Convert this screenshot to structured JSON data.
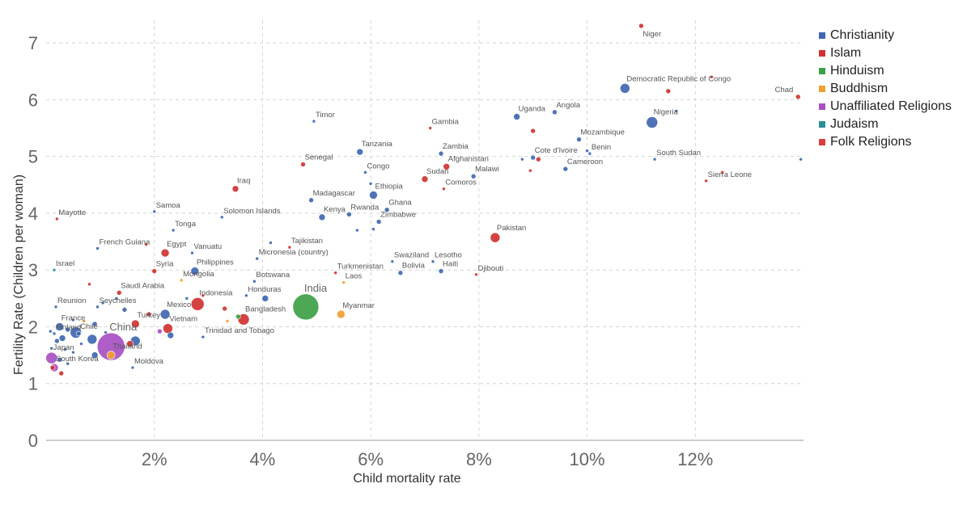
{
  "chart_data": {
    "type": "scatter",
    "title": "",
    "xlabel": "Child mortality rate",
    "ylabel": "Fertility Rate (Children per woman)",
    "xlim": [
      0,
      14
    ],
    "ylim": [
      0,
      7.4
    ],
    "x_ticks": [
      {
        "v": 2,
        "label": "2%"
      },
      {
        "v": 4,
        "label": "4%"
      },
      {
        "v": 6,
        "label": "6%"
      },
      {
        "v": 8,
        "label": "8%"
      },
      {
        "v": 10,
        "label": "10%"
      },
      {
        "v": 12,
        "label": "12%"
      }
    ],
    "y_ticks": [
      {
        "v": 0,
        "label": "0"
      },
      {
        "v": 1,
        "label": "1"
      },
      {
        "v": 2,
        "label": "2"
      },
      {
        "v": 3,
        "label": "3"
      },
      {
        "v": 4,
        "label": "4"
      },
      {
        "v": 5,
        "label": "5"
      },
      {
        "v": 6,
        "label": "6"
      },
      {
        "v": 7,
        "label": "7"
      }
    ],
    "grid": true,
    "legend_position": "top-right",
    "bubble_size": "population",
    "series": [
      {
        "name": "Christianity",
        "color": "#3f67b1"
      },
      {
        "name": "Islam",
        "color": "#d03232"
      },
      {
        "name": "Hinduism",
        "color": "#3ea046"
      },
      {
        "name": "Buddhism",
        "color": "#f0a030"
      },
      {
        "name": "Unaffiliated Religions",
        "color": "#a84fc2"
      },
      {
        "name": "Judaism",
        "color": "#2a8f9a"
      },
      {
        "name": "Folk Religions",
        "color": "#dd3c3c"
      }
    ],
    "points": [
      {
        "label": "Niger",
        "x": 11.0,
        "y": 7.3,
        "series": 1,
        "size": 3,
        "pos": "br"
      },
      {
        "label": "Democratic Republic of Congo",
        "x": 10.7,
        "y": 6.2,
        "series": 0,
        "size": 6,
        "pos": "tr"
      },
      {
        "label": "Chad",
        "x": 13.9,
        "y": 6.05,
        "series": 1,
        "size": 3,
        "pos": "tl"
      },
      {
        "label": "Uganda",
        "x": 8.7,
        "y": 5.7,
        "series": 0,
        "size": 4,
        "pos": "tr"
      },
      {
        "label": "Angola",
        "x": 9.4,
        "y": 5.78,
        "series": 0,
        "size": 3,
        "pos": "tr"
      },
      {
        "label": "Nigeria",
        "x": 11.2,
        "y": 5.6,
        "series": 0,
        "size": 7,
        "pos": "tr"
      },
      {
        "label": "Timor",
        "x": 4.95,
        "y": 5.62,
        "series": 0,
        "size": 2,
        "pos": "tr"
      },
      {
        "label": "Gambia",
        "x": 7.1,
        "y": 5.5,
        "series": 1,
        "size": 2,
        "pos": "tr"
      },
      {
        "label": "Mozambique",
        "x": 9.85,
        "y": 5.3,
        "series": 0,
        "size": 3,
        "pos": "tr"
      },
      {
        "label": "Tanzania",
        "x": 5.8,
        "y": 5.08,
        "series": 0,
        "size": 4,
        "pos": "tr"
      },
      {
        "label": "Zambia",
        "x": 7.3,
        "y": 5.05,
        "series": 0,
        "size": 3,
        "pos": "tr"
      },
      {
        "label": "Benin",
        "x": 10.05,
        "y": 5.05,
        "series": 0,
        "size": 2,
        "pos": "tr"
      },
      {
        "label": "Cote d'Ivoire",
        "x": 9.0,
        "y": 4.98,
        "series": 0,
        "size": 3,
        "pos": "tr"
      },
      {
        "label": "South Sudan",
        "x": 11.25,
        "y": 4.95,
        "series": 0,
        "size": 2,
        "pos": "tr"
      },
      {
        "label": "Senegal",
        "x": 4.75,
        "y": 4.86,
        "series": 1,
        "size": 3,
        "pos": "tr"
      },
      {
        "label": "Afghanistan",
        "x": 7.4,
        "y": 4.82,
        "series": 1,
        "size": 4,
        "pos": "tr"
      },
      {
        "label": "Cameroon",
        "x": 9.6,
        "y": 4.78,
        "series": 0,
        "size": 3,
        "pos": "tr"
      },
      {
        "label": "Congo",
        "x": 5.9,
        "y": 4.72,
        "series": 0,
        "size": 2,
        "pos": "tr"
      },
      {
        "label": "Malawi",
        "x": 7.9,
        "y": 4.65,
        "series": 0,
        "size": 3,
        "pos": "tr"
      },
      {
        "label": "Sudan",
        "x": 7.0,
        "y": 4.6,
        "series": 1,
        "size": 4,
        "pos": "tr"
      },
      {
        "label": "Sierra Leone",
        "x": 12.2,
        "y": 4.57,
        "series": 1,
        "size": 2,
        "pos": "tr"
      },
      {
        "label": "Comoros",
        "x": 7.35,
        "y": 4.43,
        "series": 1,
        "size": 2,
        "pos": "tr"
      },
      {
        "label": "Iraq",
        "x": 3.5,
        "y": 4.43,
        "series": 1,
        "size": 4,
        "pos": "tr"
      },
      {
        "label": "Ethiopia",
        "x": 6.05,
        "y": 4.32,
        "series": 0,
        "size": 5,
        "pos": "tr"
      },
      {
        "label": "Madagascar",
        "x": 4.9,
        "y": 4.23,
        "series": 0,
        "size": 3,
        "pos": "tr"
      },
      {
        "label": "Ghana",
        "x": 6.3,
        "y": 4.06,
        "series": 0,
        "size": 3,
        "pos": "tr"
      },
      {
        "label": "Samoa",
        "x": 2.0,
        "y": 4.03,
        "series": 0,
        "size": 2,
        "pos": "tr"
      },
      {
        "label": "Rwanda",
        "x": 5.6,
        "y": 3.98,
        "series": 0,
        "size": 3,
        "pos": "tr"
      },
      {
        "label": "Kenya",
        "x": 5.1,
        "y": 3.93,
        "series": 0,
        "size": 4,
        "pos": "tr"
      },
      {
        "label": "Solomon Islands",
        "x": 3.25,
        "y": 3.93,
        "series": 0,
        "size": 2,
        "pos": "tr"
      },
      {
        "label": "Mayotte",
        "x": 0.2,
        "y": 3.9,
        "series": 1,
        "size": 2,
        "pos": "tr"
      },
      {
        "label": "Zimbabwe",
        "x": 6.15,
        "y": 3.85,
        "series": 0,
        "size": 3,
        "pos": "tr"
      },
      {
        "label": "Tonga",
        "x": 2.35,
        "y": 3.7,
        "series": 0,
        "size": 2,
        "pos": "tr"
      },
      {
        "label": "Pakistan",
        "x": 8.3,
        "y": 3.57,
        "series": 1,
        "size": 6,
        "pos": "tr"
      },
      {
        "label": "French Guiana",
        "x": 0.95,
        "y": 3.38,
        "series": 0,
        "size": 2,
        "pos": "tr"
      },
      {
        "label": "Egypt",
        "x": 2.2,
        "y": 3.3,
        "series": 1,
        "size": 5,
        "pos": "tr"
      },
      {
        "label": "Vanuatu",
        "x": 2.7,
        "y": 3.3,
        "series": 0,
        "size": 2,
        "pos": "tr"
      },
      {
        "label": "Tajikistan",
        "x": 4.5,
        "y": 3.4,
        "series": 1,
        "size": 2,
        "pos": "tr"
      },
      {
        "label": "Micronesia (country)",
        "x": 3.9,
        "y": 3.2,
        "series": 0,
        "size": 2,
        "pos": "tr"
      },
      {
        "label": "Swaziland",
        "x": 6.4,
        "y": 3.15,
        "series": 0,
        "size": 2,
        "pos": "tr"
      },
      {
        "label": "Lesotho",
        "x": 7.15,
        "y": 3.15,
        "series": 0,
        "size": 2,
        "pos": "tr"
      },
      {
        "label": "Israel",
        "x": 0.15,
        "y": 3.0,
        "series": 5,
        "size": 2,
        "pos": "tr"
      },
      {
        "label": "Syria",
        "x": 2.0,
        "y": 2.98,
        "series": 1,
        "size": 3,
        "pos": "tr"
      },
      {
        "label": "Philippines",
        "x": 2.75,
        "y": 2.98,
        "series": 0,
        "size": 5,
        "pos": "tr"
      },
      {
        "label": "Turkmenistan",
        "x": 5.35,
        "y": 2.95,
        "series": 1,
        "size": 2,
        "pos": "tr"
      },
      {
        "label": "Bolivia",
        "x": 6.55,
        "y": 2.95,
        "series": 0,
        "size": 3,
        "pos": "tr"
      },
      {
        "label": "Haiti",
        "x": 7.3,
        "y": 2.98,
        "series": 0,
        "size": 3,
        "pos": "tr"
      },
      {
        "label": "Djibouti",
        "x": 7.95,
        "y": 2.92,
        "series": 1,
        "size": 2,
        "pos": "tr"
      },
      {
        "label": "Mongolia",
        "x": 2.5,
        "y": 2.82,
        "series": 3,
        "size": 2,
        "pos": "tr"
      },
      {
        "label": "Botswana",
        "x": 3.85,
        "y": 2.8,
        "series": 0,
        "size": 2,
        "pos": "tr"
      },
      {
        "label": "Laos",
        "x": 5.5,
        "y": 2.78,
        "series": 3,
        "size": 2,
        "pos": "tr"
      },
      {
        "label": "Saudi Arabia",
        "x": 1.35,
        "y": 2.6,
        "series": 1,
        "size": 3,
        "pos": "tr"
      },
      {
        "label": "Honduras",
        "x": 3.7,
        "y": 2.55,
        "series": 0,
        "size": 2,
        "pos": "tr"
      },
      {
        "label": "Indonesia",
        "x": 2.8,
        "y": 2.4,
        "series": 1,
        "size": 8,
        "pos": "tr"
      },
      {
        "label": "India",
        "x": 4.8,
        "y": 2.35,
        "series": 2,
        "size": 16,
        "pos": "tr",
        "big": true
      },
      {
        "label": "Reunion",
        "x": 0.18,
        "y": 2.35,
        "series": 0,
        "size": 2,
        "pos": "tr"
      },
      {
        "label": "Seychelles",
        "x": 0.95,
        "y": 2.35,
        "series": 0,
        "size": 2,
        "pos": "tr"
      },
      {
        "label": "Mexico",
        "x": 2.2,
        "y": 2.22,
        "series": 0,
        "size": 6,
        "pos": "tr"
      },
      {
        "label": "Myanmar",
        "x": 5.45,
        "y": 2.22,
        "series": 3,
        "size": 5,
        "pos": "tr"
      },
      {
        "label": "Bangladesh",
        "x": 3.65,
        "y": 2.13,
        "series": 1,
        "size": 7,
        "pos": "tr"
      },
      {
        "label": "Turkey",
        "x": 1.65,
        "y": 2.05,
        "series": 1,
        "size": 5,
        "pos": "tr"
      },
      {
        "label": "France",
        "x": 0.25,
        "y": 2.0,
        "series": 0,
        "size": 5,
        "pos": "tr"
      },
      {
        "label": "Vietnam",
        "x": 2.25,
        "y": 1.97,
        "series": 1,
        "size": 6,
        "pos": "tr"
      },
      {
        "label": "Chile",
        "x": 0.6,
        "y": 1.88,
        "series": 0,
        "size": 3,
        "pos": "tr"
      },
      {
        "label": "Finland",
        "x": 0.15,
        "y": 1.88,
        "series": 0,
        "size": 2,
        "pos": "tr"
      },
      {
        "label": "Trinidad and Tobago",
        "x": 2.9,
        "y": 1.82,
        "series": 0,
        "size": 2,
        "pos": "tr"
      },
      {
        "label": "China",
        "x": 1.2,
        "y": 1.65,
        "series": 4,
        "size": 17,
        "pos": "tr",
        "big": true
      },
      {
        "label": "Thailand",
        "x": 1.2,
        "y": 1.5,
        "series": 3,
        "size": 5,
        "pos": "tr"
      },
      {
        "label": "Japan",
        "x": 0.1,
        "y": 1.45,
        "series": 4,
        "size": 7,
        "pos": "tr"
      },
      {
        "label": "South Korea",
        "x": 0.15,
        "y": 1.28,
        "series": 4,
        "size": 5,
        "pos": "tr"
      },
      {
        "label": "Moldova",
        "x": 1.6,
        "y": 1.28,
        "series": 0,
        "size": 2,
        "pos": "tr"
      },
      {
        "label": "",
        "x": 12.3,
        "y": 6.4,
        "series": 1,
        "size": 2
      },
      {
        "label": "",
        "x": 11.5,
        "y": 6.15,
        "series": 1,
        "size": 3
      },
      {
        "label": "",
        "x": 11.65,
        "y": 5.8,
        "series": 0,
        "size": 2
      },
      {
        "label": "",
        "x": 9.0,
        "y": 5.45,
        "series": 1,
        "size": 3
      },
      {
        "label": "",
        "x": 10.0,
        "y": 5.1,
        "series": 0,
        "size": 2
      },
      {
        "label": "",
        "x": 9.1,
        "y": 4.95,
        "series": 1,
        "size": 3
      },
      {
        "label": "",
        "x": 8.8,
        "y": 4.95,
        "series": 0,
        "size": 2
      },
      {
        "label": "",
        "x": 13.95,
        "y": 4.95,
        "series": 0,
        "size": 2
      },
      {
        "label": "",
        "x": 8.95,
        "y": 4.75,
        "series": 1,
        "size": 2
      },
      {
        "label": "",
        "x": 12.5,
        "y": 4.72,
        "series": 1,
        "size": 2
      },
      {
        "label": "",
        "x": 6.0,
        "y": 4.52,
        "series": 0,
        "size": 2
      },
      {
        "label": "",
        "x": 5.75,
        "y": 3.7,
        "series": 0,
        "size": 2
      },
      {
        "label": "",
        "x": 6.05,
        "y": 3.72,
        "series": 0,
        "size": 2
      },
      {
        "label": "",
        "x": 4.15,
        "y": 3.48,
        "series": 0,
        "size": 2
      },
      {
        "label": "",
        "x": 1.85,
        "y": 3.45,
        "series": 1,
        "size": 2
      },
      {
        "label": "",
        "x": 0.8,
        "y": 2.75,
        "series": 1,
        "size": 2
      },
      {
        "label": "",
        "x": 2.6,
        "y": 2.5,
        "series": 0,
        "size": 2
      },
      {
        "label": "",
        "x": 2.9,
        "y": 2.55,
        "series": 1,
        "size": 2
      },
      {
        "label": "",
        "x": 4.05,
        "y": 2.5,
        "series": 0,
        "size": 4
      },
      {
        "label": "",
        "x": 3.3,
        "y": 2.32,
        "series": 1,
        "size": 3
      },
      {
        "label": "",
        "x": 1.3,
        "y": 2.5,
        "series": 0,
        "size": 2
      },
      {
        "label": "",
        "x": 1.05,
        "y": 2.42,
        "series": 0,
        "size": 2
      },
      {
        "label": "",
        "x": 1.45,
        "y": 2.3,
        "series": 0,
        "size": 3
      },
      {
        "label": "",
        "x": 1.9,
        "y": 2.22,
        "series": 1,
        "size": 3
      },
      {
        "label": "",
        "x": 3.55,
        "y": 2.18,
        "series": 2,
        "size": 3
      },
      {
        "label": "",
        "x": 3.35,
        "y": 2.1,
        "series": 3,
        "size": 2
      },
      {
        "label": "",
        "x": 0.5,
        "y": 2.12,
        "series": 0,
        "size": 2
      },
      {
        "label": "",
        "x": 0.7,
        "y": 2.1,
        "series": 3,
        "size": 2
      },
      {
        "label": "",
        "x": 0.9,
        "y": 2.05,
        "series": 0,
        "size": 3
      },
      {
        "label": "",
        "x": 0.4,
        "y": 1.95,
        "series": 0,
        "size": 3
      },
      {
        "label": "",
        "x": 0.55,
        "y": 1.9,
        "series": 0,
        "size": 7
      },
      {
        "label": "",
        "x": 0.3,
        "y": 1.8,
        "series": 0,
        "size": 4
      },
      {
        "label": "",
        "x": 0.2,
        "y": 1.75,
        "series": 0,
        "size": 3
      },
      {
        "label": "",
        "x": 0.85,
        "y": 1.78,
        "series": 0,
        "size": 6
      },
      {
        "label": "",
        "x": 1.65,
        "y": 1.75,
        "series": 0,
        "size": 6
      },
      {
        "label": "",
        "x": 1.55,
        "y": 1.7,
        "series": 1,
        "size": 4
      },
      {
        "label": "",
        "x": 2.3,
        "y": 1.85,
        "series": 0,
        "size": 4
      },
      {
        "label": "",
        "x": 2.1,
        "y": 1.92,
        "series": 4,
        "size": 3
      },
      {
        "label": "",
        "x": 0.35,
        "y": 1.6,
        "series": 0,
        "size": 2
      },
      {
        "label": "",
        "x": 0.5,
        "y": 1.55,
        "series": 0,
        "size": 2
      },
      {
        "label": "",
        "x": 0.9,
        "y": 1.5,
        "series": 0,
        "size": 4
      },
      {
        "label": "",
        "x": 0.25,
        "y": 1.42,
        "series": 0,
        "size": 3
      },
      {
        "label": "",
        "x": 0.4,
        "y": 1.35,
        "series": 0,
        "size": 2
      },
      {
        "label": "",
        "x": 0.12,
        "y": 1.28,
        "series": 1,
        "size": 3
      },
      {
        "label": "",
        "x": 0.28,
        "y": 1.18,
        "series": 1,
        "size": 3
      },
      {
        "label": "",
        "x": 0.1,
        "y": 1.62,
        "series": 0,
        "size": 2
      },
      {
        "label": "",
        "x": 0.08,
        "y": 1.92,
        "series": 0,
        "size": 2
      },
      {
        "label": "",
        "x": 0.65,
        "y": 1.7,
        "series": 0,
        "size": 2
      },
      {
        "label": "",
        "x": 1.1,
        "y": 1.9,
        "series": 0,
        "size": 2
      }
    ]
  }
}
